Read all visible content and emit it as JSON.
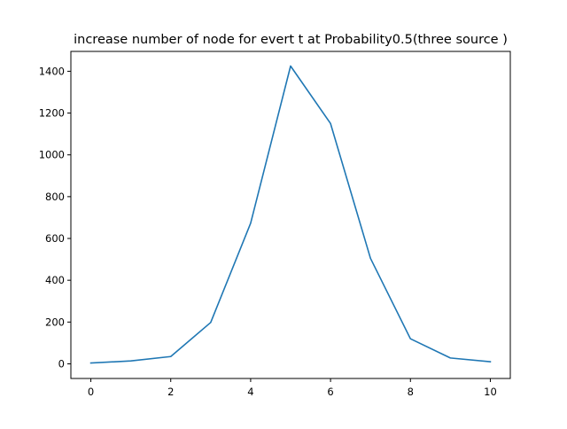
{
  "chart_data": {
    "type": "line",
    "title": "increase number of node for evert t  at Probability0.5(three source )",
    "xlabel": "",
    "ylabel": "",
    "x": [
      0,
      1,
      2,
      3,
      4,
      5,
      6,
      7,
      8,
      9,
      10
    ],
    "series": [
      {
        "values": [
          4,
          14,
          35,
          198,
          673,
          1425,
          1150,
          505,
          120,
          28,
          10
        ]
      }
    ],
    "xlim": [
      -0.5,
      10.5
    ],
    "ylim": [
      -70,
      1495
    ],
    "xticks": [
      0,
      2,
      4,
      6,
      8,
      10
    ],
    "yticks": [
      0,
      200,
      400,
      600,
      800,
      1000,
      1200,
      1400
    ],
    "grid": false,
    "legend": "none",
    "colors": {
      "line": "#1f77b4",
      "axes": "#000000",
      "background": "#ffffff"
    }
  }
}
